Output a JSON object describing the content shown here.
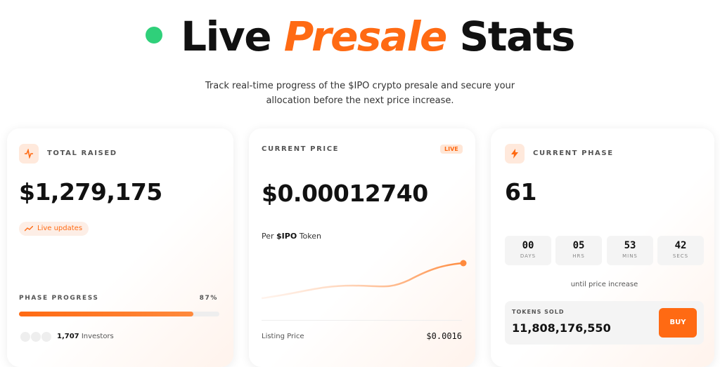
{
  "header": {
    "title_parts": [
      "Live",
      "Presale",
      "Stats"
    ],
    "subtitle_lines": [
      "Track real-time progress of the $IPO crypto presale and secure your",
      "allocation before the next price increase."
    ]
  },
  "total_raised": {
    "label": "TOTAL RAISED",
    "value": "$1,279,175",
    "badge": "Live updates",
    "progress_label": "PHASE PROGRESS",
    "progress": 87,
    "progress_label_value": "87%",
    "investors_count": "1,707",
    "investors_text": "Investors"
  },
  "current_price": {
    "label": "CURRENT PRICE",
    "badge": "LIVE",
    "value": "$0.00012740",
    "per_parts": [
      "Per",
      "$IPO",
      "Token"
    ],
    "listing_label": "Listing Price",
    "listing_value": "$0.0016"
  },
  "current_phase": {
    "label": "CURRENT PHASE",
    "value": "61",
    "countdown": [
      {
        "value": "00",
        "unit": "DAYS"
      },
      {
        "value": "05",
        "unit": "HRS"
      },
      {
        "value": "53",
        "unit": "MINS"
      },
      {
        "value": "42",
        "unit": "SECS"
      }
    ],
    "countdown_caption": "until price increase",
    "tokens_label": "TOKENS SOLD",
    "tokens_value": "11,808,176,550",
    "button": "BUY"
  }
}
